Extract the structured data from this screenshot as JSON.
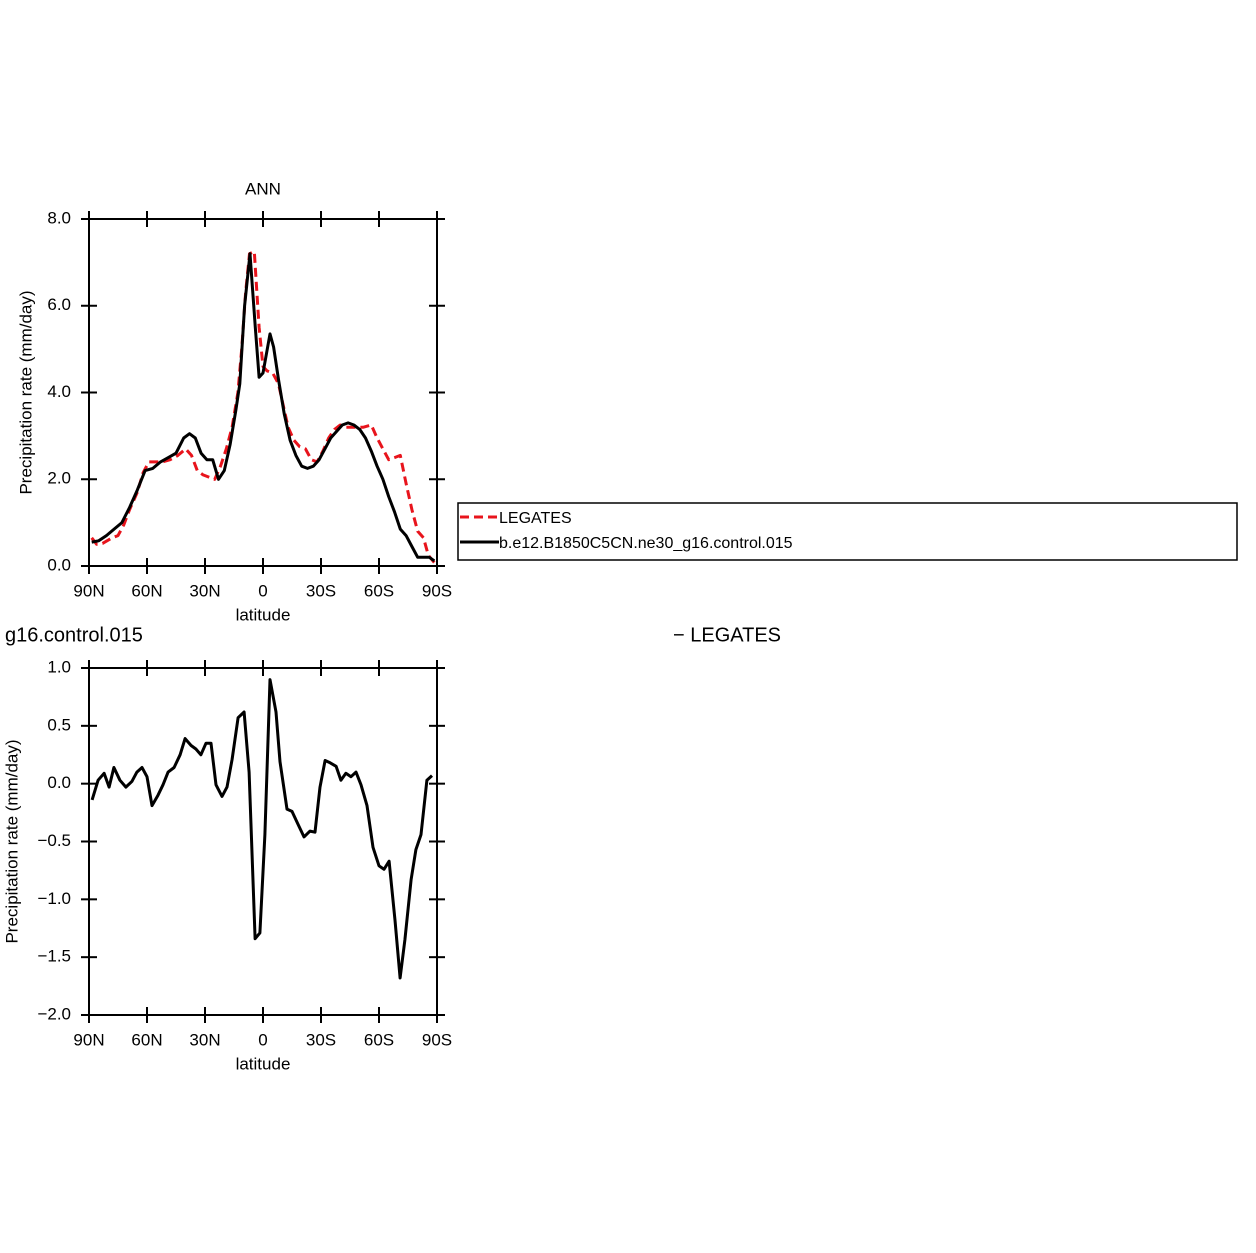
{
  "chart_data": [
    {
      "type": "line",
      "title": "ANN",
      "xlabel": "latitude",
      "ylabel": "Precipitation rate (mm/day)",
      "xlim": [
        90,
        -90
      ],
      "xticks": [
        {
          "value": 90,
          "label": "90N"
        },
        {
          "value": 60,
          "label": "60N"
        },
        {
          "value": 30,
          "label": "30N"
        },
        0,
        {
          "value": -30,
          "label": "30S"
        },
        {
          "value": -60,
          "label": "60S"
        },
        {
          "value": -90,
          "label": "90S"
        }
      ],
      "ylim": [
        0,
        8
      ],
      "yticks": [
        {
          "value": 0,
          "label": "0.0"
        },
        {
          "value": 2,
          "label": "2.0"
        },
        {
          "value": 4,
          "label": "4.0"
        },
        {
          "value": 6,
          "label": "6.0"
        },
        {
          "value": 8,
          "label": "8.0"
        }
      ],
      "legend": "right",
      "series": [
        {
          "name": "LEGATES",
          "color": "#e8141c",
          "dash": "dashed",
          "x": [
            88.6,
            86,
            83,
            78,
            75,
            72,
            69,
            65,
            62,
            59,
            55,
            52,
            48,
            44,
            40,
            37,
            34,
            31,
            28,
            25,
            22,
            19,
            16,
            13,
            11,
            9,
            7,
            4.5,
            2,
            0,
            -2,
            -5,
            -8,
            -10,
            -13,
            -16,
            -19,
            -22,
            -25,
            -28,
            -31,
            -34,
            -37,
            -40,
            -43,
            -46,
            -49,
            -52,
            -56,
            -59,
            -62,
            -65,
            -68,
            -71,
            -74,
            -77,
            -80,
            -83,
            -85.5,
            -88.6
          ],
          "values": [
            0.65,
            0.5,
            0.52,
            0.65,
            0.7,
            0.95,
            1.3,
            1.7,
            2.15,
            2.4,
            2.4,
            2.4,
            2.45,
            2.55,
            2.7,
            2.55,
            2.2,
            2.1,
            2.05,
            2.0,
            2.3,
            2.7,
            3.2,
            4.0,
            5.0,
            6.3,
            7.2,
            7.25,
            5.5,
            4.6,
            4.5,
            4.45,
            4.2,
            3.8,
            3.2,
            2.9,
            2.75,
            2.7,
            2.45,
            2.4,
            2.65,
            2.95,
            3.15,
            3.25,
            3.2,
            3.2,
            3.2,
            3.2,
            3.25,
            2.95,
            2.7,
            2.45,
            2.5,
            2.55,
            1.9,
            1.3,
            0.8,
            0.65,
            0.25,
            0.08
          ]
        },
        {
          "name": "b.e12.B1850C5CN.ne30_g16.control.015",
          "color": "#000000",
          "dash": "solid",
          "x": [
            88.6,
            85,
            81,
            77,
            73,
            69,
            65,
            61,
            57,
            53,
            49,
            45,
            41,
            38,
            35,
            32,
            29,
            26,
            23,
            20,
            17,
            14,
            12,
            9.5,
            6.7,
            4,
            2,
            0,
            -3.6,
            -5.5,
            -8,
            -11,
            -14,
            -17,
            -20,
            -23,
            -26,
            -29,
            -32,
            -35,
            -38,
            -41,
            -44,
            -47,
            -50,
            -53,
            -56,
            -59,
            -62,
            -65,
            -68,
            -71,
            -74,
            -77,
            -80,
            -83,
            -86,
            -88.6
          ],
          "values": [
            0.55,
            0.58,
            0.7,
            0.85,
            1.0,
            1.35,
            1.75,
            2.2,
            2.25,
            2.4,
            2.5,
            2.6,
            2.95,
            3.05,
            2.95,
            2.6,
            2.45,
            2.45,
            2.0,
            2.2,
            2.8,
            3.6,
            4.2,
            6.0,
            7.2,
            5.5,
            4.35,
            4.45,
            5.35,
            5.05,
            4.3,
            3.5,
            2.9,
            2.55,
            2.3,
            2.25,
            2.3,
            2.45,
            2.7,
            2.95,
            3.1,
            3.25,
            3.3,
            3.25,
            3.15,
            2.95,
            2.65,
            2.3,
            2.0,
            1.6,
            1.25,
            0.85,
            0.7,
            0.45,
            0.2,
            0.2,
            0.2,
            0.12
          ]
        }
      ]
    },
    {
      "type": "line",
      "title": "g16.control.015",
      "title_right": "− LEGATES",
      "xlabel": "latitude",
      "ylabel": "Precipitation rate (mm/day)",
      "xlim": [
        90,
        -90
      ],
      "xticks": [
        {
          "value": 90,
          "label": "90N"
        },
        {
          "value": 60,
          "label": "60N"
        },
        {
          "value": 30,
          "label": "30N"
        },
        0,
        {
          "value": -30,
          "label": "30S"
        },
        {
          "value": -60,
          "label": "60S"
        },
        {
          "value": -90,
          "label": "90S"
        }
      ],
      "ylim": [
        -2,
        1
      ],
      "yticks": [
        {
          "value": -2,
          "label": "−2.0"
        },
        {
          "value": -1.5,
          "label": "−1.5"
        },
        {
          "value": -1,
          "label": "−1.0"
        },
        {
          "value": -0.5,
          "label": "−0.5"
        },
        {
          "value": 0,
          "label": "0.0"
        },
        0.5,
        {
          "value": 1,
          "label": "1.0"
        }
      ],
      "series": [
        {
          "color": "#000000",
          "dash": "solid",
          "x": [
            88.4,
            85.3,
            82.2,
            79.6,
            77.1,
            74.0,
            70.9,
            67.8,
            65.2,
            62.6,
            60.0,
            57.4,
            54.3,
            51.7,
            49.1,
            46.0,
            42.9,
            40.3,
            37.2,
            34.7,
            32.1,
            29.5,
            26.9,
            24.3,
            21.2,
            18.6,
            16.0,
            12.9,
            9.8,
            7.2,
            4.1,
            1.6,
            -1.0,
            -3.6,
            -6.7,
            -8.8,
            -12.4,
            -15.0,
            -18.1,
            -21.2,
            -24.3,
            -26.9,
            -29.5,
            -32.1,
            -34.7,
            -37.8,
            -40.3,
            -42.9,
            -45.5,
            -48.1,
            -50.7,
            -53.8,
            -56.9,
            -60.0,
            -62.6,
            -65.2,
            -68.3,
            -70.9,
            -73.4,
            -76.6,
            -79.1,
            -81.7,
            -84.8,
            -87.4
          ],
          "values": [
            -0.14,
            0.03,
            0.09,
            -0.03,
            0.14,
            0.03,
            -0.03,
            0.02,
            0.1,
            0.14,
            0.06,
            -0.19,
            -0.1,
            -0.01,
            0.1,
            0.14,
            0.25,
            0.39,
            0.33,
            0.3,
            0.25,
            0.35,
            0.35,
            -0.01,
            -0.11,
            -0.03,
            0.21,
            0.57,
            0.62,
            0.1,
            -1.34,
            -1.29,
            -0.44,
            0.9,
            0.62,
            0.19,
            -0.22,
            -0.24,
            -0.35,
            -0.46,
            -0.41,
            -0.42,
            -0.03,
            0.2,
            0.18,
            0.15,
            0.03,
            0.09,
            0.06,
            0.1,
            -0.01,
            -0.19,
            -0.55,
            -0.71,
            -0.74,
            -0.67,
            -1.18,
            -1.68,
            -1.35,
            -0.83,
            -0.57,
            -0.44,
            0.03,
            0.07
          ]
        }
      ]
    }
  ]
}
